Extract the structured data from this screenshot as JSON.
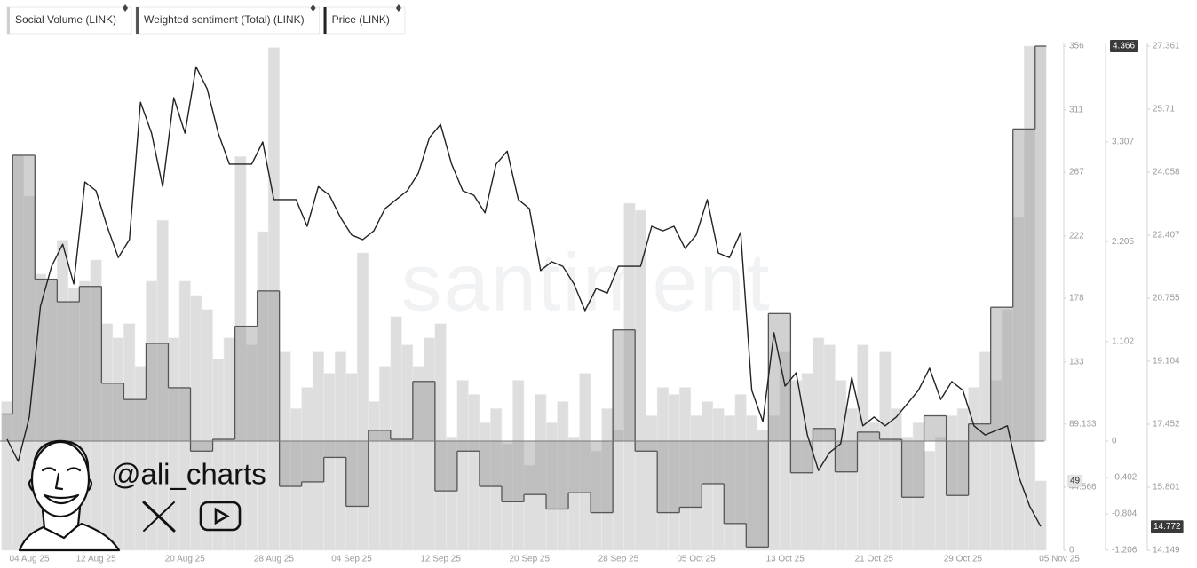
{
  "chart_data": {
    "type": "combo",
    "watermark": "santiment",
    "annotation": "@ali_charts",
    "categories": [
      "04 Aug 25",
      null,
      null,
      null,
      null,
      null,
      null,
      null,
      "12 Aug 25",
      null,
      null,
      null,
      null,
      null,
      null,
      null,
      "20 Aug 25",
      null,
      null,
      null,
      null,
      null,
      null,
      null,
      "28 Aug 25",
      null,
      null,
      null,
      null,
      null,
      null,
      "04 Sep 25",
      null,
      null,
      null,
      null,
      null,
      null,
      null,
      "12 Sep 25",
      null,
      null,
      null,
      null,
      null,
      null,
      null,
      "20 Sep 25",
      null,
      null,
      null,
      null,
      null,
      null,
      null,
      "28 Sep 25",
      null,
      null,
      null,
      null,
      null,
      null,
      "05 Oct 25",
      null,
      null,
      null,
      null,
      null,
      null,
      null,
      "13 Oct 25",
      null,
      null,
      null,
      null,
      null,
      null,
      null,
      "21 Oct 25",
      null,
      null,
      null,
      null,
      null,
      null,
      null,
      "29 Oct 25",
      null,
      null,
      null,
      null,
      null,
      null,
      "05 Nov 25"
    ],
    "series": [
      {
        "name": "Social Volume (LINK)",
        "type": "bar",
        "axis": "y",
        "color": "#dedede",
        "values": [
          105,
          279,
          250,
          195,
          191,
          219,
          185,
          190,
          205,
          160,
          150,
          160,
          130,
          190,
          233,
          150,
          190,
          180,
          170,
          135,
          150,
          278,
          145,
          225,
          355,
          140,
          100,
          115,
          140,
          125,
          140,
          125,
          210,
          105,
          130,
          165,
          145,
          130,
          150,
          160,
          80,
          120,
          110,
          90,
          100,
          75,
          120,
          60,
          110,
          90,
          105,
          80,
          125,
          70,
          100,
          85,
          245,
          240,
          95,
          115,
          110,
          115,
          95,
          105,
          100,
          95,
          110,
          95,
          85,
          95,
          140,
          120,
          125,
          150,
          145,
          120,
          100,
          145,
          90,
          140,
          100,
          80,
          90,
          70,
          80,
          95,
          100,
          115,
          140,
          120,
          170,
          235,
          356,
          49
        ]
      },
      {
        "name": "Weighted sentiment (Total) (LINK)",
        "type": "step-area",
        "axis": "y2",
        "color": "#555555",
        "values": [
          0.3,
          3.16,
          3.16,
          1.79,
          1.79,
          1.54,
          1.54,
          1.71,
          1.71,
          0.64,
          0.64,
          0.46,
          0.46,
          1.08,
          1.08,
          0.59,
          0.59,
          -0.11,
          -0.11,
          0.02,
          0.02,
          1.27,
          1.27,
          1.66,
          1.66,
          -0.5,
          -0.5,
          -0.45,
          -0.45,
          -0.18,
          -0.18,
          -0.72,
          -0.72,
          0.12,
          0.12,
          0.02,
          0.02,
          0.66,
          0.66,
          -0.55,
          -0.55,
          -0.11,
          -0.11,
          -0.5,
          -0.5,
          -0.67,
          -0.67,
          -0.59,
          -0.59,
          -0.75,
          -0.75,
          -0.57,
          -0.57,
          -0.79,
          -0.79,
          1.23,
          1.23,
          -0.11,
          -0.11,
          -0.79,
          -0.79,
          -0.73,
          -0.73,
          -0.47,
          -0.47,
          -0.91,
          -0.91,
          -1.17,
          -1.17,
          1.41,
          1.41,
          -0.35,
          -0.35,
          0.14,
          0.14,
          -0.34,
          -0.34,
          0.1,
          0.1,
          0.02,
          0.02,
          -0.62,
          -0.62,
          0.28,
          0.28,
          -0.6,
          -0.6,
          0.19,
          0.19,
          1.48,
          1.48,
          3.45,
          3.45,
          4.366
        ]
      },
      {
        "name": "Price (LINK)",
        "type": "line",
        "axis": "y3",
        "color": "#222222",
        "values": [
          17.06,
          16.48,
          17.64,
          20.54,
          21.59,
          22.17,
          21.13,
          23.8,
          23.57,
          22.64,
          21.82,
          22.29,
          25.89,
          25.08,
          23.68,
          26.01,
          25.08,
          26.82,
          26.24,
          25.08,
          24.27,
          24.27,
          24.27,
          24.85,
          23.34,
          23.34,
          23.34,
          22.64,
          23.68,
          23.45,
          22.87,
          22.41,
          22.29,
          22.52,
          23.1,
          23.34,
          23.57,
          24.03,
          24.96,
          25.31,
          24.27,
          23.57,
          23.45,
          22.99,
          24.27,
          24.61,
          23.34,
          23.1,
          21.48,
          21.71,
          21.59,
          21.13,
          20.43,
          21.01,
          20.89,
          21.59,
          21.59,
          21.59,
          22.64,
          22.52,
          22.64,
          22.06,
          22.41,
          23.34,
          21.94,
          21.82,
          22.48,
          18.34,
          17.52,
          19.85,
          18.45,
          18.8,
          17.17,
          16.24,
          16.71,
          16.94,
          18.68,
          17.41,
          17.64,
          17.41,
          17.64,
          17.99,
          18.34,
          18.92,
          18.1,
          18.57,
          18.34,
          17.41,
          17.17,
          17.29,
          17.41,
          16.1,
          15.31,
          14.772
        ]
      }
    ],
    "ylim": [
      0,
      356
    ],
    "yticks": [
      0,
      44.566,
      89.133,
      133,
      178,
      222,
      267,
      311,
      356
    ],
    "y2lim": [
      -1.206,
      4.366
    ],
    "y2ticks": [
      -1.206,
      -0.804,
      -0.402,
      0,
      1.102,
      2.205,
      3.307
    ],
    "y3lim": [
      14.149,
      27.361
    ],
    "y3ticks": [
      14.149,
      15.801,
      17.452,
      19.104,
      20.755,
      22.407,
      24.058,
      25.71,
      27.361
    ],
    "legend": "top-left",
    "grid": false
  }
}
